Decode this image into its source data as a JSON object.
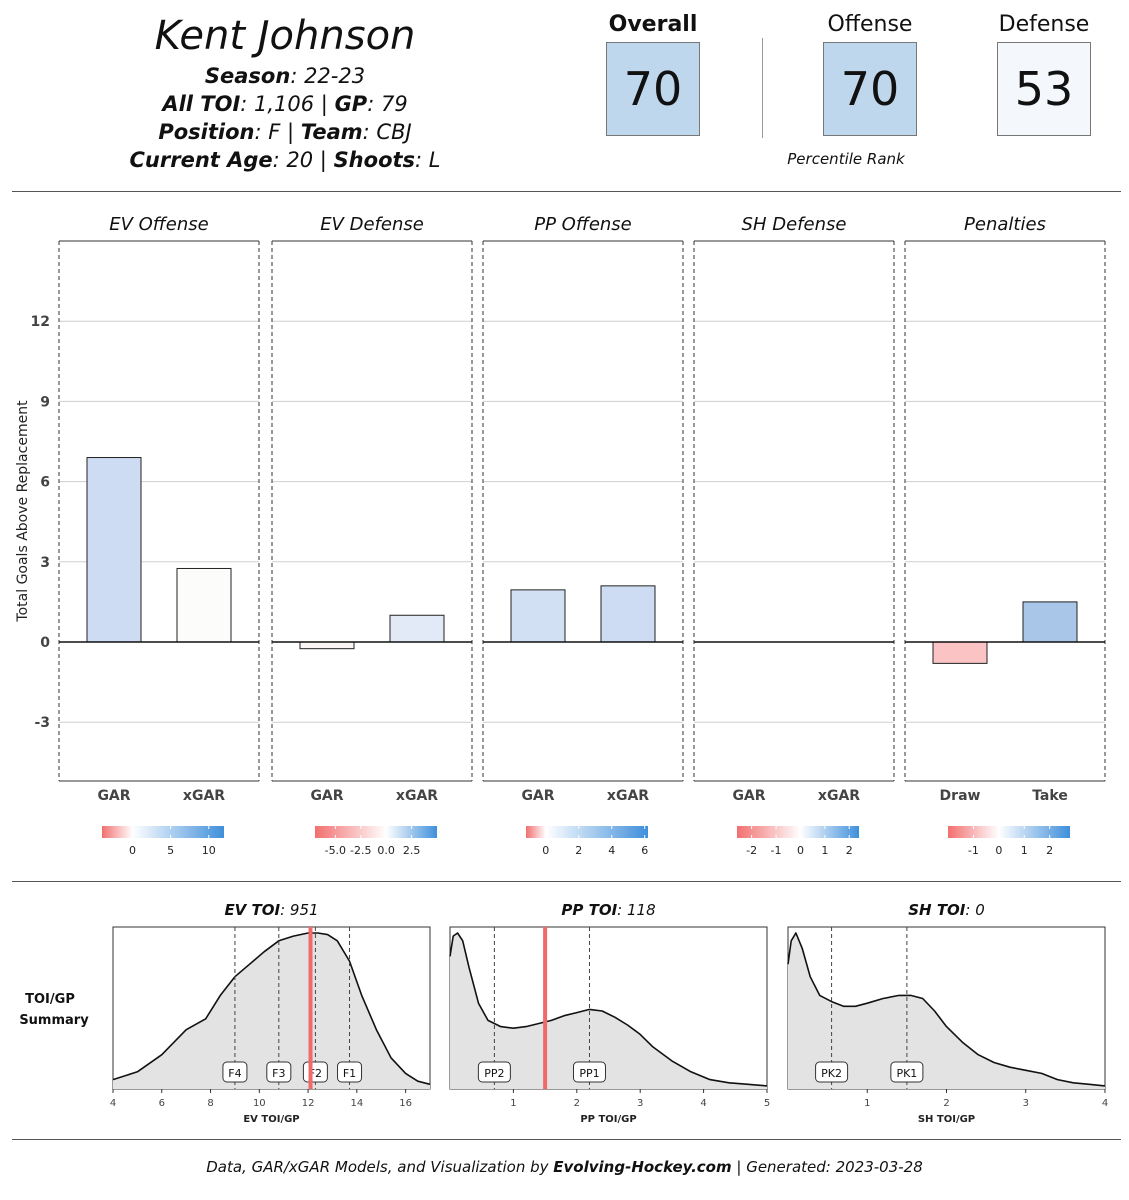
{
  "player": {
    "name": "Kent Johnson",
    "season_label": "Season",
    "season_value": ": 22-23",
    "toi_label": "All TOI",
    "toi_value": ": 1,106 | ",
    "gp_label": "GP",
    "gp_value": ": 79",
    "position_label": "Position",
    "position_value": ": F | ",
    "team_label": "Team",
    "team_value": ": CBJ",
    "age_label": "Current Age",
    "age_value": ": 20 | ",
    "shoots_label": "Shoots",
    "shoots_value": ": L"
  },
  "ratings": {
    "overall_label": "Overall",
    "overall_value": "70",
    "offense_label": "Offense",
    "offense_value": "70",
    "defense_label": "Defense",
    "defense_value": "53",
    "percentile_label": "Percentile Rank",
    "colors": {
      "overall": "#bfd7ec",
      "offense": "#bfd7ec",
      "defense": "#f4f7fb"
    }
  },
  "footer": {
    "prefix": "Data, GAR/xGAR Models, and Visualization by ",
    "site": "Evolving-Hockey.com",
    "suffix": " | Generated: 2023-03-28"
  },
  "chart_data": [
    {
      "type": "bar",
      "ylabel": "Total Goals Above Replacement",
      "ylim": [
        -5.2,
        15
      ],
      "yticks": [
        -3,
        0,
        3,
        6,
        9,
        12
      ],
      "grid": true,
      "panels": [
        {
          "title": "EV Offense",
          "categories": [
            "GAR",
            "xGAR"
          ],
          "values": [
            6.9,
            2.75
          ],
          "colors": [
            "#cddcf2",
            "#fcfcfb"
          ],
          "legend": {
            "ticks": [
              "0",
              "5",
              "10"
            ],
            "tick_values": [
              0,
              5,
              10
            ],
            "min": -4,
            "max": 12
          }
        },
        {
          "title": "EV Defense",
          "categories": [
            "GAR",
            "xGAR"
          ],
          "values": [
            -0.25,
            1.0
          ],
          "colors": [
            "#fbf4f4",
            "#e2eaf7"
          ],
          "legend": {
            "ticks": [
              "-5.0",
              "-2.5",
              "0.0",
              "2.5"
            ],
            "tick_values": [
              -5,
              -2.5,
              0,
              2.5
            ],
            "min": -7,
            "max": 5
          }
        },
        {
          "title": "PP Offense",
          "categories": [
            "GAR",
            "xGAR"
          ],
          "values": [
            1.95,
            2.1
          ],
          "colors": [
            "#d2e0f3",
            "#cddcf2"
          ],
          "legend": {
            "ticks": [
              "0",
              "2",
              "4",
              "6"
            ],
            "tick_values": [
              0,
              2,
              4,
              6
            ],
            "min": -1.2,
            "max": 6.2
          }
        },
        {
          "title": "SH Defense",
          "categories": [
            "GAR",
            "xGAR"
          ],
          "values": [
            0,
            0
          ],
          "colors": [
            "#ffffff",
            "#ffffff"
          ],
          "legend": {
            "ticks": [
              "-2",
              "-1",
              "0",
              "1",
              "2"
            ],
            "tick_values": [
              -2,
              -1,
              0,
              1,
              2
            ],
            "min": -2.6,
            "max": 2.4
          }
        },
        {
          "title": "Penalties",
          "categories": [
            "Draw",
            "Take"
          ],
          "values": [
            -0.8,
            1.5
          ],
          "colors": [
            "#fbc3c3",
            "#a9c6e8"
          ],
          "legend": {
            "ticks": [
              "-1",
              "0",
              "1",
              "2"
            ],
            "tick_values": [
              -1,
              0,
              1,
              2
            ],
            "min": -2,
            "max": 2.8
          }
        }
      ]
    },
    {
      "type": "area",
      "row_label": [
        "TOI/GP",
        "Summary"
      ],
      "panels": [
        {
          "title_label": "EV TOI",
          "title_value": ": 951",
          "xlabel": "EV TOI/GP",
          "xlim": [
            4,
            17
          ],
          "xticks": [
            4,
            6,
            8,
            10,
            12,
            14,
            16
          ],
          "player_value": 12.1,
          "density": {
            "x": [
              4,
              5,
              6,
              7,
              7.8,
              8.4,
              9,
              9.6,
              10.2,
              10.8,
              11.4,
              12,
              12.4,
              12.8,
              13.2,
              13.7,
              14.2,
              14.8,
              15.4,
              16,
              16.5,
              17
            ],
            "y": [
              0.06,
              0.11,
              0.22,
              0.38,
              0.45,
              0.6,
              0.72,
              0.8,
              0.88,
              0.95,
              0.98,
              1.0,
              1.0,
              0.99,
              0.95,
              0.82,
              0.6,
              0.38,
              0.2,
              0.1,
              0.05,
              0.03
            ]
          },
          "markers": [
            {
              "label": "F4",
              "x": 9.0
            },
            {
              "label": "F3",
              "x": 10.8
            },
            {
              "label": "F2",
              "x": 12.3
            },
            {
              "label": "F1",
              "x": 13.7
            }
          ]
        },
        {
          "title_label": "PP TOI",
          "title_value": ": 118",
          "xlabel": "PP TOI/GP",
          "xlim": [
            0,
            5
          ],
          "xticks": [
            1,
            2,
            3,
            4,
            5
          ],
          "player_value": 1.5,
          "density": {
            "x": [
              0,
              0.05,
              0.12,
              0.2,
              0.3,
              0.45,
              0.6,
              0.8,
              1.0,
              1.2,
              1.4,
              1.6,
              1.8,
              2.0,
              2.2,
              2.4,
              2.6,
              2.8,
              3.0,
              3.2,
              3.5,
              3.8,
              4.1,
              4.4,
              4.7,
              5.0
            ],
            "y": [
              0.85,
              0.98,
              1.0,
              0.95,
              0.78,
              0.55,
              0.44,
              0.4,
              0.39,
              0.4,
              0.42,
              0.44,
              0.47,
              0.49,
              0.51,
              0.5,
              0.46,
              0.41,
              0.35,
              0.27,
              0.18,
              0.11,
              0.06,
              0.04,
              0.03,
              0.02
            ]
          },
          "markers": [
            {
              "label": "PP2",
              "x": 0.7
            },
            {
              "label": "PP1",
              "x": 2.2
            }
          ]
        },
        {
          "title_label": "SH TOI",
          "title_value": ": 0",
          "xlabel": "SH TOI/GP",
          "xlim": [
            0,
            4
          ],
          "xticks": [
            1,
            2,
            3,
            4
          ],
          "player_value": null,
          "density": {
            "x": [
              0,
              0.04,
              0.1,
              0.18,
              0.28,
              0.4,
              0.55,
              0.7,
              0.85,
              1.0,
              1.2,
              1.4,
              1.55,
              1.7,
              1.85,
              2.0,
              2.2,
              2.4,
              2.6,
              2.8,
              3.0,
              3.2,
              3.4,
              3.6,
              3.8,
              4.0
            ],
            "y": [
              0.8,
              0.95,
              1.0,
              0.9,
              0.72,
              0.6,
              0.56,
              0.53,
              0.53,
              0.55,
              0.58,
              0.6,
              0.6,
              0.58,
              0.5,
              0.4,
              0.3,
              0.22,
              0.17,
              0.14,
              0.12,
              0.1,
              0.06,
              0.04,
              0.03,
              0.02
            ]
          },
          "markers": [
            {
              "label": "PK2",
              "x": 0.55
            },
            {
              "label": "PK1",
              "x": 1.5
            }
          ]
        }
      ]
    }
  ]
}
